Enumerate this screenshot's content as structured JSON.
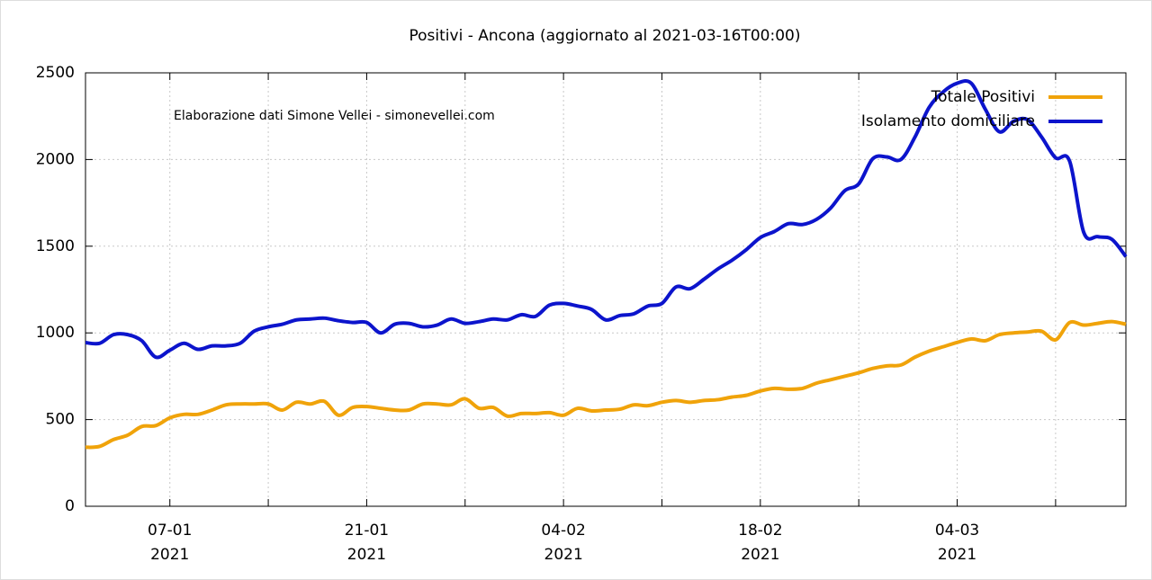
{
  "chart_data": {
    "type": "line",
    "title": "Positivi - Ancona (aggiornato al 2021-03-16T00:00)",
    "annotation": "Elaborazione dati Simone Vellei - simonevellei.com",
    "x": [
      "2021-01-01",
      "2021-01-02",
      "2021-01-03",
      "2021-01-04",
      "2021-01-05",
      "2021-01-06",
      "2021-01-07",
      "2021-01-08",
      "2021-01-09",
      "2021-01-10",
      "2021-01-11",
      "2021-01-12",
      "2021-01-13",
      "2021-01-14",
      "2021-01-15",
      "2021-01-16",
      "2021-01-17",
      "2021-01-18",
      "2021-01-19",
      "2021-01-20",
      "2021-01-21",
      "2021-01-22",
      "2021-01-23",
      "2021-01-24",
      "2021-01-25",
      "2021-01-26",
      "2021-01-27",
      "2021-01-28",
      "2021-01-29",
      "2021-01-30",
      "2021-01-31",
      "2021-02-01",
      "2021-02-02",
      "2021-02-03",
      "2021-02-04",
      "2021-02-05",
      "2021-02-06",
      "2021-02-07",
      "2021-02-08",
      "2021-02-09",
      "2021-02-10",
      "2021-02-11",
      "2021-02-12",
      "2021-02-13",
      "2021-02-14",
      "2021-02-15",
      "2021-02-16",
      "2021-02-17",
      "2021-02-18",
      "2021-02-19",
      "2021-02-20",
      "2021-02-21",
      "2021-02-22",
      "2021-02-23",
      "2021-02-24",
      "2021-02-25",
      "2021-02-26",
      "2021-02-27",
      "2021-02-28",
      "2021-03-01",
      "2021-03-02",
      "2021-03-03",
      "2021-03-04",
      "2021-03-05",
      "2021-03-06",
      "2021-03-07",
      "2021-03-08",
      "2021-03-09",
      "2021-03-10",
      "2021-03-11",
      "2021-03-12",
      "2021-03-13",
      "2021-03-14",
      "2021-03-15",
      "2021-03-16"
    ],
    "series": [
      {
        "name": "Totale Positivi",
        "color": "#f0a30a",
        "values": [
          340,
          345,
          385,
          410,
          460,
          465,
          510,
          530,
          530,
          555,
          585,
          590,
          590,
          590,
          555,
          600,
          590,
          605,
          525,
          570,
          575,
          565,
          555,
          555,
          590,
          590,
          585,
          620,
          565,
          570,
          520,
          535,
          535,
          540,
          525,
          565,
          550,
          555,
          560,
          585,
          580,
          600,
          610,
          600,
          610,
          615,
          630,
          640,
          665,
          680,
          675,
          680,
          710,
          730,
          750,
          770,
          795,
          810,
          815,
          860,
          895,
          920,
          945,
          965,
          955,
          990,
          1000,
          1005,
          1010,
          960,
          1060,
          1045,
          1055,
          1065,
          1050
        ]
      },
      {
        "name": "Isolamento domiciliare",
        "color": "#0c14cc",
        "values": [
          944,
          940,
          990,
          990,
          955,
          860,
          900,
          940,
          905,
          925,
          925,
          940,
          1010,
          1035,
          1050,
          1075,
          1080,
          1085,
          1070,
          1060,
          1060,
          1000,
          1050,
          1055,
          1035,
          1045,
          1080,
          1055,
          1065,
          1080,
          1075,
          1105,
          1095,
          1160,
          1170,
          1155,
          1135,
          1075,
          1100,
          1110,
          1155,
          1170,
          1265,
          1255,
          1310,
          1370,
          1420,
          1480,
          1550,
          1585,
          1630,
          1625,
          1655,
          1720,
          1820,
          1860,
          2005,
          2015,
          2000,
          2130,
          2300,
          2390,
          2440,
          2440,
          2290,
          2160,
          2220,
          2230,
          2130,
          2010,
          1990,
          1580,
          1555,
          1540,
          1440
        ]
      }
    ],
    "xlim": [
      "2021-01-01",
      "2021-03-16"
    ],
    "xticks": [
      {
        "value": "2021-01-07",
        "label": "07-01",
        "sublabel": "2021"
      },
      {
        "value": "2021-01-14",
        "label": null
      },
      {
        "value": "2021-01-21",
        "label": "21-01",
        "sublabel": "2021"
      },
      {
        "value": "2021-01-28",
        "label": null
      },
      {
        "value": "2021-02-04",
        "label": "04-02",
        "sublabel": "2021"
      },
      {
        "value": "2021-02-11",
        "label": null
      },
      {
        "value": "2021-02-18",
        "label": "18-02",
        "sublabel": "2021"
      },
      {
        "value": "2021-02-25",
        "label": null
      },
      {
        "value": "2021-03-04",
        "label": "04-03",
        "sublabel": "2021"
      },
      {
        "value": "2021-03-11",
        "label": null
      }
    ],
    "ylim": [
      0,
      2500
    ],
    "yticks": [
      0,
      500,
      1000,
      1500,
      2000,
      2500
    ],
    "grid": true,
    "legend": "top-right"
  }
}
